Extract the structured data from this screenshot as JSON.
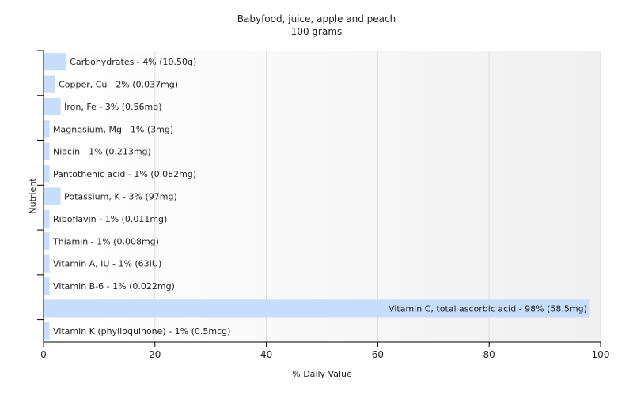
{
  "chart_data": {
    "type": "bar",
    "orientation": "horizontal",
    "title": "Babyfood, juice, apple and peach",
    "subtitle": "100 grams",
    "xlabel": "% Daily Value",
    "ylabel": "Nutrient",
    "xlim": [
      0,
      100
    ],
    "xticks": [
      0,
      20,
      40,
      60,
      80,
      100
    ],
    "grid": true,
    "bar_color": "#c6defc",
    "categories": [
      "Carbohydrates",
      "Copper, Cu",
      "Iron, Fe",
      "Magnesium, Mg",
      "Niacin",
      "Pantothenic acid",
      "Potassium, K",
      "Riboflavin",
      "Thiamin",
      "Vitamin A, IU",
      "Vitamin B-6",
      "Vitamin C, total ascorbic acid",
      "Vitamin K (phylloquinone)"
    ],
    "values": [
      4,
      2,
      3,
      1,
      1,
      1,
      3,
      1,
      1,
      1,
      1,
      98,
      1
    ],
    "labels": [
      "Carbohydrates - 4% (10.50g)",
      "Copper, Cu - 2% (0.037mg)",
      "Iron, Fe - 3% (0.56mg)",
      "Magnesium, Mg - 1% (3mg)",
      "Niacin - 1% (0.213mg)",
      "Pantothenic acid - 1% (0.082mg)",
      "Potassium, K - 3% (97mg)",
      "Riboflavin - 1% (0.011mg)",
      "Thiamin - 1% (0.008mg)",
      "Vitamin A, IU - 1% (63IU)",
      "Vitamin B-6 - 1% (0.022mg)",
      "Vitamin C, total ascorbic acid - 98% (58.5mg)",
      "Vitamin K (phylloquinone) - 1% (0.5mcg)"
    ]
  }
}
